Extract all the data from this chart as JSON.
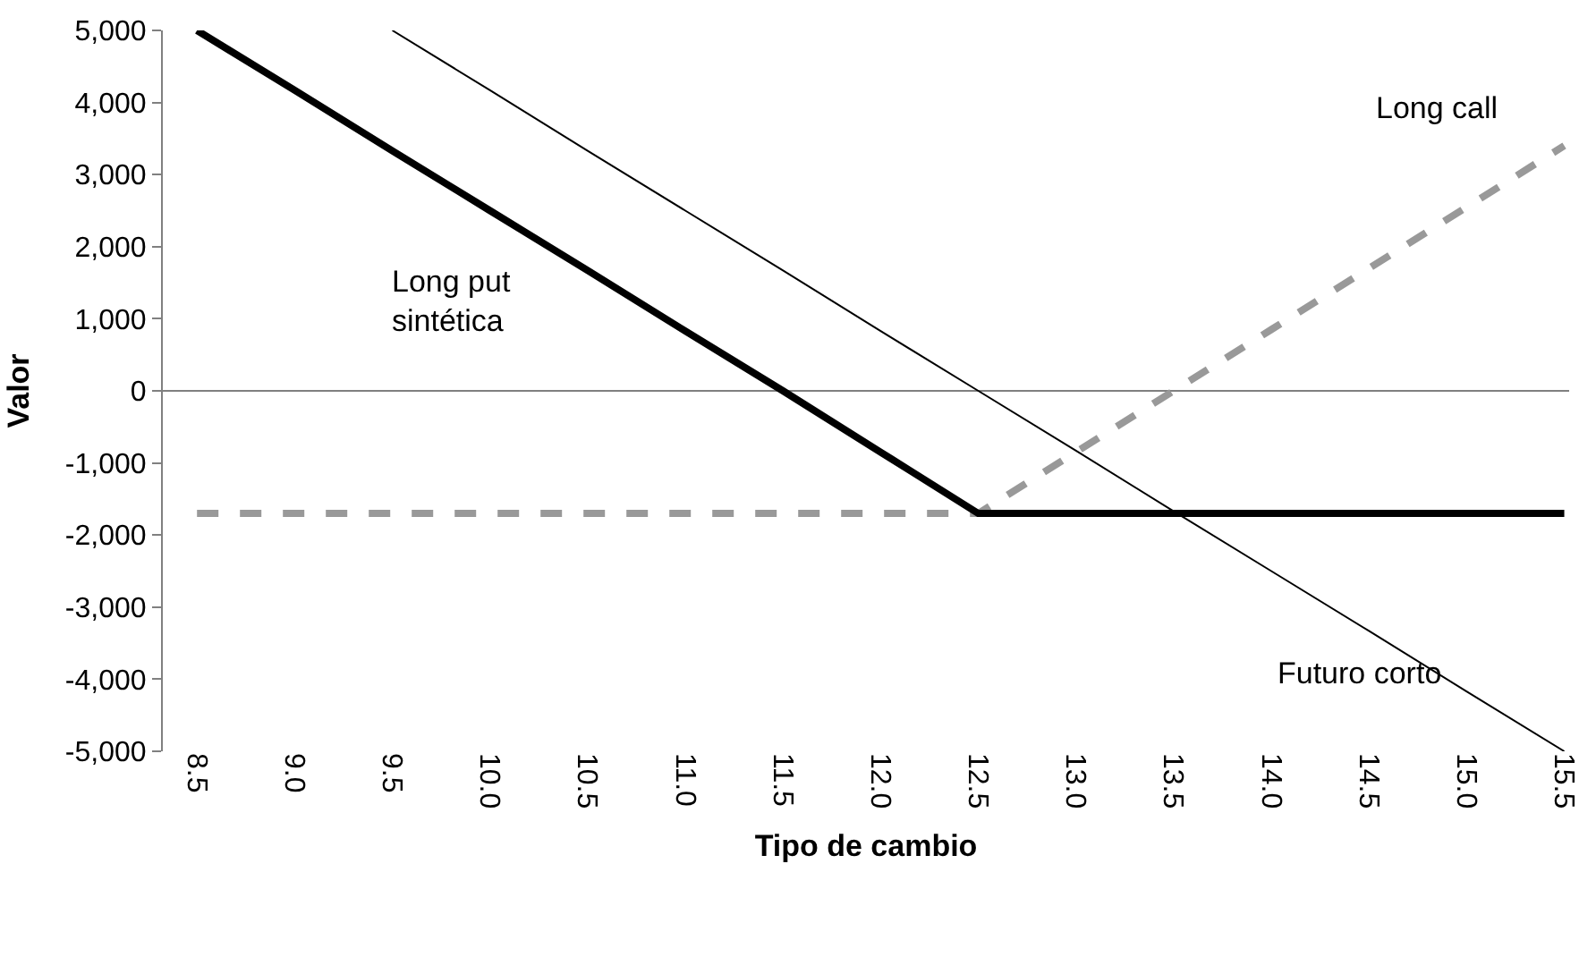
{
  "chart_data": {
    "type": "line",
    "xlabel": "Tipo de cambio",
    "ylabel": "Valor",
    "categories": [
      "8.5",
      "9.0",
      "9.5",
      "10.0",
      "10.5",
      "11.0",
      "11.5",
      "12.0",
      "12.5",
      "13.0",
      "13.5",
      "14.0",
      "14.5",
      "15.0",
      "15.5"
    ],
    "series": [
      {
        "name": "Futuro corto",
        "color": "#000000",
        "values": [
          null,
          null,
          5000,
          4170,
          3330,
          2500,
          1670,
          830,
          0,
          -830,
          -1670,
          -2500,
          -3330,
          -4170,
          -5000
        ]
      },
      {
        "name": "Long call",
        "color": "#999999",
        "line_style": "dashed",
        "values": [
          -1700,
          -1700,
          -1700,
          -1700,
          -1700,
          -1700,
          -1700,
          -1700,
          -1700,
          -850,
          0,
          850,
          1700,
          2550,
          3400
        ]
      },
      {
        "name": "Long put\nsintética",
        "color": "#000000",
        "values": [
          5000,
          4170,
          3330,
          2500,
          1670,
          830,
          0,
          -850,
          -1700,
          -1700,
          -1700,
          -1700,
          -1700,
          -1700,
          -1700
        ]
      }
    ],
    "ylim": [
      -5000,
      5000
    ],
    "yticks": [
      {
        "value": -5000,
        "label": "-5,000"
      },
      {
        "value": -4000,
        "label": "-4,000"
      },
      {
        "value": -3000,
        "label": "-3,000"
      },
      {
        "value": -2000,
        "label": "-2,000"
      },
      {
        "value": -1000,
        "label": "-1,000"
      },
      0,
      {
        "value": 1000,
        "label": "1,000"
      },
      {
        "value": 2000,
        "label": "2,000"
      },
      {
        "value": 3000,
        "label": "3,000"
      },
      {
        "value": 4000,
        "label": "4,000"
      },
      {
        "value": 5000,
        "label": "5,000"
      }
    ],
    "ref_lines": [
      {
        "axis": "y",
        "value": 0,
        "color": "#808080"
      }
    ],
    "grid": false,
    "legend": false,
    "marker": "none"
  }
}
